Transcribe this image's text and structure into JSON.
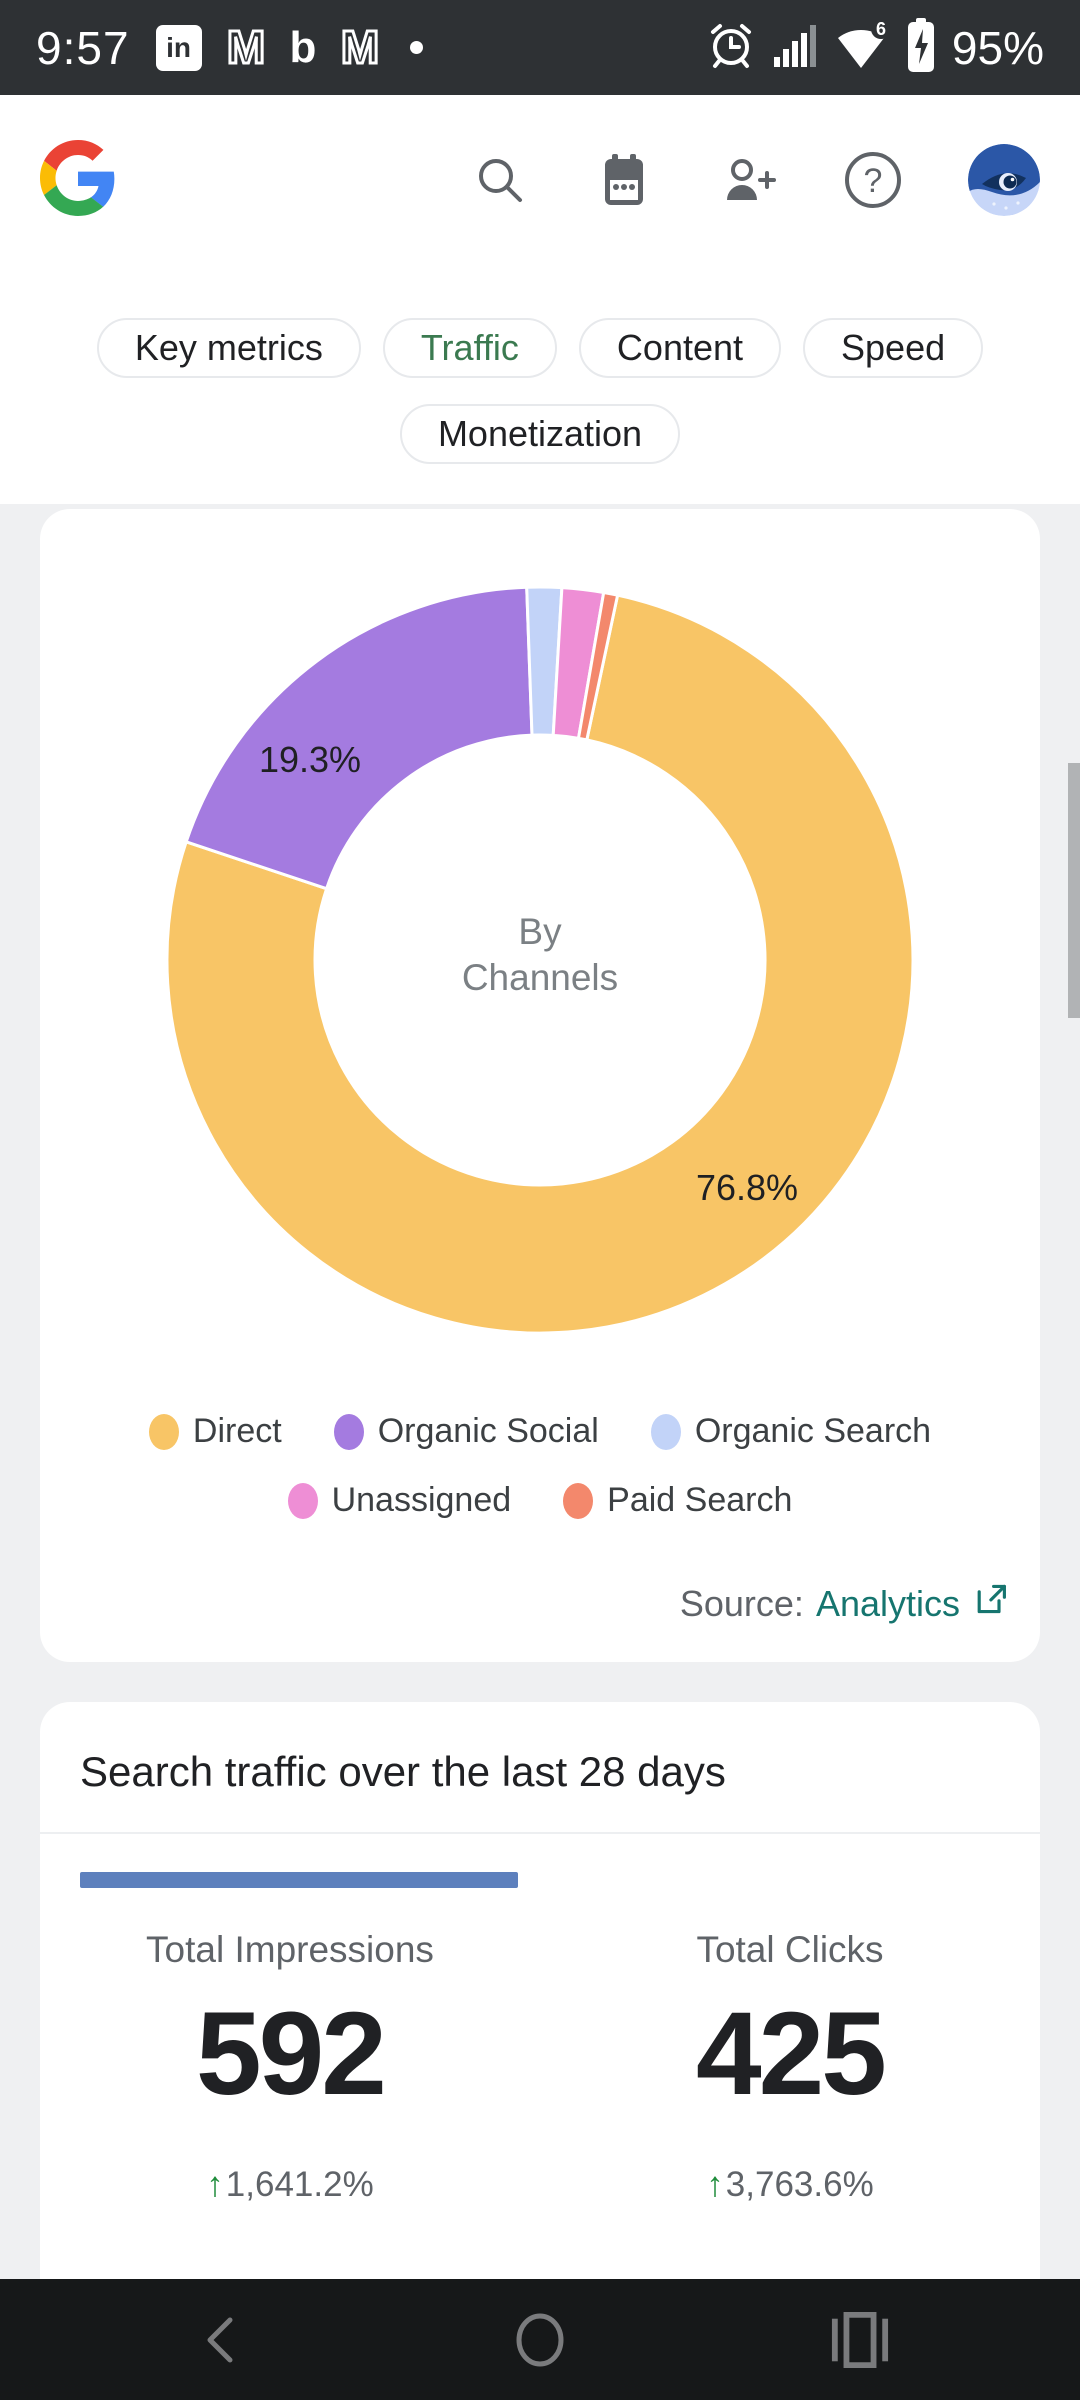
{
  "status_bar": {
    "time": "9:57",
    "notification_icons": [
      {
        "type": "linkedin",
        "glyph": "in"
      },
      {
        "type": "gmail",
        "glyph": "M"
      },
      {
        "type": "bing",
        "glyph": "b"
      },
      {
        "type": "gmail",
        "glyph": "M"
      },
      {
        "type": "notification-dot",
        "glyph": ""
      }
    ],
    "system_icons": [
      "alarm",
      "signal",
      "wifi",
      "battery"
    ],
    "wifi_generation": "6",
    "battery_percent": "95%"
  },
  "header": {
    "logo": "google-g",
    "action_icons": [
      "search",
      "date-range",
      "add-person",
      "help"
    ],
    "avatar": "whale-eye-profile-photo"
  },
  "tabs": {
    "items": [
      {
        "label": "Key metrics",
        "active": false
      },
      {
        "label": "Traffic",
        "active": true
      },
      {
        "label": "Content",
        "active": false
      },
      {
        "label": "Speed",
        "active": false
      },
      {
        "label": "Monetization",
        "active": false
      }
    ],
    "active_color": "#3b7a50"
  },
  "chart_data": {
    "type": "pie",
    "donut": true,
    "title": "By Channels",
    "center_label_lines": [
      "By",
      "Channels"
    ],
    "start_angle_deg": 12,
    "legend_position": "bottom",
    "series": [
      {
        "name": "Direct",
        "value": 76.8,
        "color": "#F8C566"
      },
      {
        "name": "Organic Social",
        "value": 19.3,
        "color": "#A47BE0"
      },
      {
        "name": "Organic Search",
        "value": 1.5,
        "color": "#C2D3F8"
      },
      {
        "name": "Unassigned",
        "value": 1.8,
        "color": "#EE8ED5"
      },
      {
        "name": "Paid Search",
        "value": 0.6,
        "color": "#F3886C"
      }
    ],
    "shown_labels": [
      {
        "series": "Direct",
        "text": "76.8%"
      },
      {
        "series": "Organic Social",
        "text": "19.3%"
      }
    ]
  },
  "chart_card": {
    "source_prefix": "Source:",
    "source_link": "Analytics"
  },
  "search_card": {
    "title": "Search traffic over the last 28 days",
    "indicator_color": "#5d80bd",
    "metrics": [
      {
        "label": "Total Impressions",
        "value": "592",
        "delta_arrow": "↑",
        "delta": "1,641.2%"
      },
      {
        "label": "Total Clicks",
        "value": "425",
        "delta_arrow": "↑",
        "delta": "3,763.6%"
      }
    ]
  },
  "nav_bar": {
    "icons": [
      "back",
      "home",
      "recents"
    ]
  }
}
